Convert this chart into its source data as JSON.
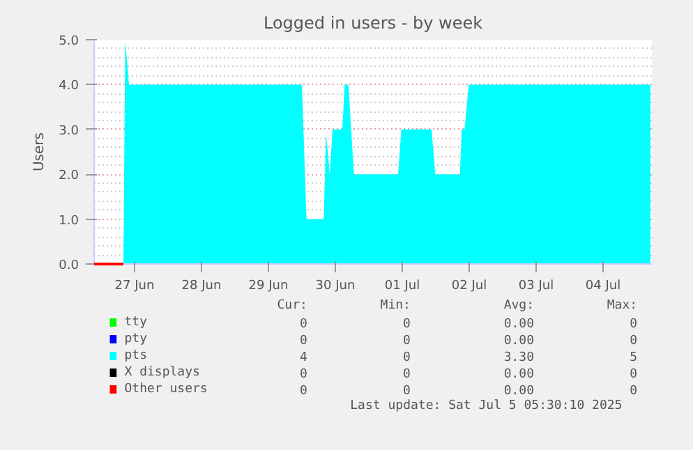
{
  "chart_data": {
    "type": "area",
    "title": "Logged in users - by week",
    "ylabel": "Users",
    "xlim": [
      "2025-06-26T09:30",
      "2025-07-04T17:30"
    ],
    "xticks": [
      {
        "value": "2025-06-27",
        "label": "27 Jun"
      },
      {
        "value": "2025-06-28",
        "label": "28 Jun"
      },
      {
        "value": "2025-06-29",
        "label": "29 Jun"
      },
      {
        "value": "2025-06-30",
        "label": "30 Jun"
      },
      {
        "value": "2025-07-01",
        "label": "01 Jul"
      },
      {
        "value": "2025-07-02",
        "label": "02 Jul"
      },
      {
        "value": "2025-07-03",
        "label": "03 Jul"
      },
      {
        "value": "2025-07-04",
        "label": "04 Jul"
      }
    ],
    "ylim": [
      0,
      5
    ],
    "yticks": [
      {
        "value": 0,
        "label": "0.0"
      },
      {
        "value": 1,
        "label": "1.0"
      },
      {
        "value": 2,
        "label": "2.0"
      },
      {
        "value": 3,
        "label": "3.0"
      },
      {
        "value": 4,
        "label": "4.0"
      },
      {
        "value": 5,
        "label": "5.0"
      }
    ],
    "grid": true,
    "legend": "bottom",
    "series": [
      {
        "name": "tty",
        "color": "#00ff00",
        "type": "line"
      },
      {
        "name": "pty",
        "color": "#0000ff",
        "type": "line"
      },
      {
        "name": "pts",
        "color": "#00ffff",
        "x": [
          "2025-06-26T20:00",
          "2025-06-26T20:40",
          "2025-06-26T22:00",
          "2025-06-29T12:00",
          "2025-06-29T13:40",
          "2025-06-29T19:50",
          "2025-06-29T20:40",
          "2025-06-29T22:00",
          "2025-06-29T23:00",
          "2025-06-30T02:30",
          "2025-06-30T03:20",
          "2025-06-30T04:40",
          "2025-06-30T06:40",
          "2025-06-30T22:30",
          "2025-06-30T23:40",
          "2025-07-01T10:30",
          "2025-07-01T11:50",
          "2025-07-01T20:40",
          "2025-07-01T21:20",
          "2025-07-01T22:20",
          "2025-07-01T23:50",
          "2025-07-04T17:00"
        ],
        "values": [
          0,
          5,
          4,
          4,
          1,
          1,
          2.9,
          2,
          3,
          3,
          4,
          4,
          2,
          2,
          3,
          3,
          2,
          2,
          3,
          3,
          4,
          4
        ]
      },
      {
        "name": "X displays",
        "color": "#000000",
        "type": "line"
      },
      {
        "name": "Other users",
        "color": "#ff0000",
        "type": "line",
        "x": [
          "2025-06-26T09:30",
          "2025-06-26T20:00"
        ],
        "values": [
          0,
          0
        ]
      }
    ],
    "annotations": [
      "Cur:",
      "Min:",
      "Avg:",
      "Max:",
      "0",
      "0",
      "0.00",
      "0",
      "0",
      "0",
      "0.00",
      "0",
      "4",
      "0",
      "3.30",
      "5",
      "0",
      "0",
      "0.00",
      "0",
      "0",
      "0",
      "0.00",
      "0",
      "Last update:  Sat Jul  5 05:30:10 2025"
    ]
  }
}
